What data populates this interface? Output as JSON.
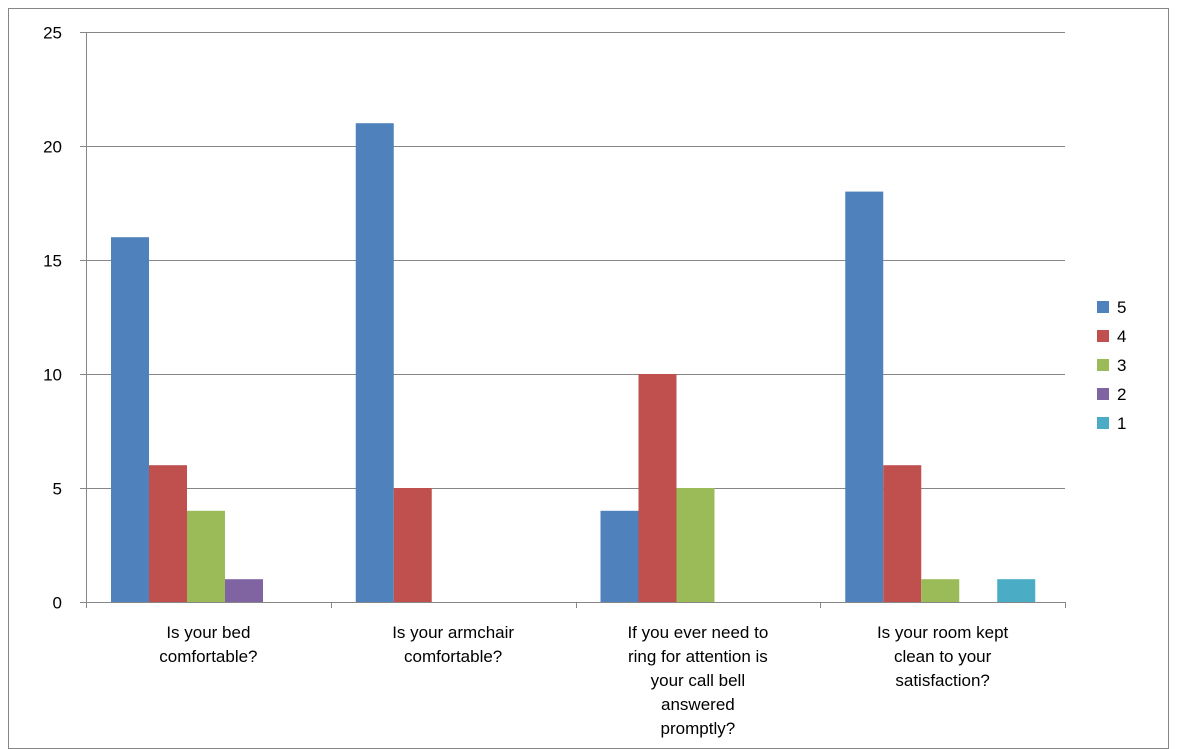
{
  "chart_data": {
    "type": "bar",
    "title": "",
    "xlabel": "",
    "ylabel": "",
    "ylim": [
      0,
      25
    ],
    "yticks": [
      0,
      5,
      10,
      15,
      20,
      25
    ],
    "grid": true,
    "legend_position": "right",
    "categories": [
      [
        "Is your bed",
        "comfortable?"
      ],
      [
        "Is your armchair",
        "comfortable?"
      ],
      [
        "If you ever need to",
        "ring for attention is",
        "your call bell",
        "answered",
        "promptly?"
      ],
      [
        "Is your room kept",
        "clean to your",
        "satisfaction?"
      ]
    ],
    "series": [
      {
        "name": "5",
        "color": "#4F81BD",
        "values": [
          16,
          21,
          4,
          18
        ]
      },
      {
        "name": "4",
        "color": "#C0504D",
        "values": [
          6,
          5,
          10,
          6
        ]
      },
      {
        "name": "3",
        "color": "#9BBB59",
        "values": [
          4,
          0,
          5,
          1
        ]
      },
      {
        "name": "2",
        "color": "#8064A2",
        "values": [
          1,
          0,
          0,
          0
        ]
      },
      {
        "name": "1",
        "color": "#4BACC6",
        "values": [
          0,
          0,
          0,
          1
        ]
      }
    ]
  }
}
